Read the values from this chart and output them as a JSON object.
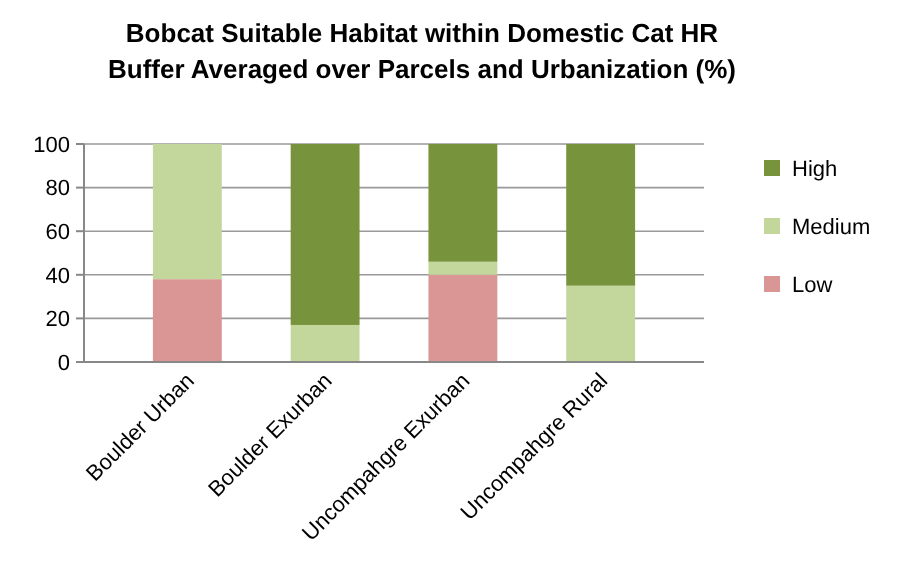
{
  "chart_data": {
    "type": "bar",
    "title": "Bobcat Suitable Habitat within Domestic Cat HR\nBuffer Averaged over Parcels and Urbanization (%)",
    "categories": [
      "Boulder Urban",
      "Boulder Exurban",
      "Uncompahgre Exurban",
      "Uncompahgre Rural"
    ],
    "stacked": true,
    "series": [
      {
        "name": "Low",
        "color": "#d99694",
        "values": [
          38,
          0,
          40,
          0
        ]
      },
      {
        "name": "Medium",
        "color": "#c3d69b",
        "values": [
          62,
          17,
          6,
          35
        ]
      },
      {
        "name": "High",
        "color": "#77933c",
        "values": [
          0,
          83,
          54,
          65
        ]
      }
    ],
    "ylim": [
      0,
      100
    ],
    "yticks": [
      0,
      20,
      40,
      60,
      80,
      100
    ],
    "grid": "y",
    "legend": "right"
  }
}
